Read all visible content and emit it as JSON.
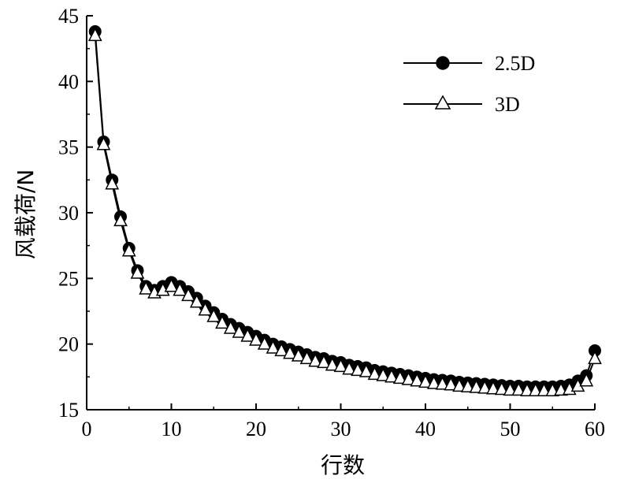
{
  "chart_data": {
    "type": "line",
    "title": "",
    "xlabel": "行数",
    "ylabel": "风载荷/N",
    "xlim": [
      0,
      60
    ],
    "ylim": [
      15,
      45
    ],
    "xticks": [
      0,
      10,
      20,
      30,
      40,
      50,
      60
    ],
    "yticks": [
      15,
      20,
      25,
      30,
      35,
      40,
      45
    ],
    "legend_position": "top-right",
    "grid": false,
    "x": [
      1,
      2,
      3,
      4,
      5,
      6,
      7,
      8,
      9,
      10,
      11,
      12,
      13,
      14,
      15,
      16,
      17,
      18,
      19,
      20,
      21,
      22,
      23,
      24,
      25,
      26,
      27,
      28,
      29,
      30,
      31,
      32,
      33,
      34,
      35,
      36,
      37,
      38,
      39,
      40,
      41,
      42,
      43,
      44,
      45,
      46,
      47,
      48,
      49,
      50,
      51,
      52,
      53,
      54,
      55,
      56,
      57,
      58,
      59,
      60
    ],
    "series": [
      {
        "name": "2.5D",
        "marker": "filled-circle",
        "color": "#000000",
        "values": [
          43.8,
          35.4,
          32.5,
          29.7,
          27.3,
          25.6,
          24.4,
          24.1,
          24.4,
          24.7,
          24.4,
          24.0,
          23.5,
          22.9,
          22.4,
          21.9,
          21.5,
          21.2,
          20.9,
          20.6,
          20.3,
          20.0,
          19.8,
          19.6,
          19.4,
          19.2,
          19.0,
          18.9,
          18.7,
          18.6,
          18.4,
          18.3,
          18.2,
          18.0,
          17.9,
          17.8,
          17.7,
          17.6,
          17.5,
          17.4,
          17.3,
          17.25,
          17.2,
          17.1,
          17.05,
          17.0,
          16.95,
          16.9,
          16.85,
          16.8,
          16.8,
          16.75,
          16.75,
          16.75,
          16.75,
          16.8,
          16.9,
          17.2,
          17.6,
          19.5
        ]
      },
      {
        "name": "3D",
        "marker": "open-triangle",
        "color": "#000000",
        "values": [
          43.5,
          35.2,
          32.2,
          29.4,
          27.1,
          25.4,
          24.2,
          23.9,
          24.1,
          24.4,
          24.1,
          23.7,
          23.2,
          22.6,
          22.1,
          21.6,
          21.2,
          20.9,
          20.6,
          20.3,
          20.0,
          19.7,
          19.5,
          19.3,
          19.1,
          18.9,
          18.7,
          18.6,
          18.4,
          18.3,
          18.1,
          18.0,
          17.9,
          17.7,
          17.6,
          17.5,
          17.4,
          17.3,
          17.2,
          17.1,
          17.0,
          16.95,
          16.9,
          16.8,
          16.75,
          16.7,
          16.65,
          16.6,
          16.55,
          16.5,
          16.5,
          16.45,
          16.45,
          16.45,
          16.45,
          16.5,
          16.55,
          16.8,
          17.2,
          18.9
        ]
      }
    ]
  }
}
